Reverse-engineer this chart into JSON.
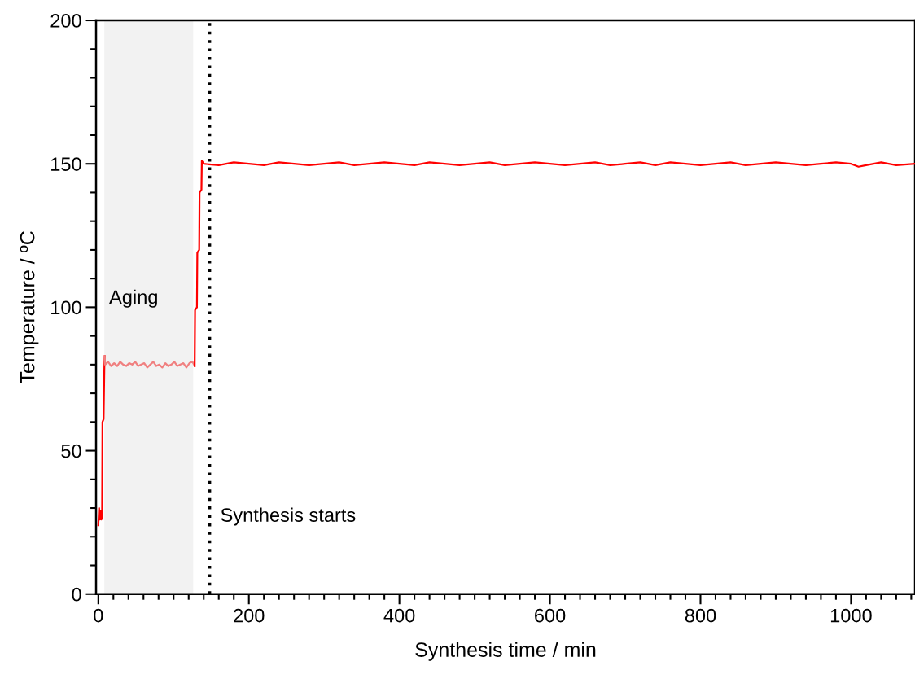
{
  "chart_data": {
    "type": "line",
    "xlabel": "Synthesis time / min",
    "ylabel": "Temperature / ºC",
    "xlim": [
      -3,
      1085
    ],
    "xticks": [
      0,
      200,
      400,
      600,
      800,
      1000
    ],
    "ylim": [
      0,
      200
    ],
    "yticks": [
      0,
      50,
      100,
      150,
      200
    ],
    "grid": false,
    "marker": "none",
    "line_style": "solid",
    "series": [
      {
        "color": "#ff0000",
        "x": [
          0,
          1,
          2,
          3,
          4,
          5,
          5.5,
          7,
          8,
          8.5
        ],
        "values": [
          24,
          30,
          26,
          29,
          26,
          27,
          60,
          61,
          79,
          83
        ]
      },
      {
        "color": "#f08080",
        "x": [
          8.5,
          9,
          13,
          17,
          21,
          25,
          29,
          33,
          37,
          41,
          45,
          49,
          53,
          57,
          61,
          65,
          69,
          73,
          77,
          81,
          85,
          89,
          93,
          97,
          101,
          105,
          109,
          113,
          117,
          121,
          125,
          128
        ],
        "values": [
          83,
          80,
          81,
          79.5,
          80.5,
          79.5,
          81,
          80,
          79.5,
          80.5,
          80,
          81,
          79.5,
          80,
          80.5,
          79,
          80,
          81,
          79.5,
          80,
          79,
          80.5,
          79.5,
          80,
          81,
          79.5,
          80,
          80.5,
          79,
          80.5,
          81,
          79.5
        ]
      },
      {
        "color": "#ff0000",
        "x": [
          128,
          128.5,
          131,
          131.5,
          134,
          134.5,
          137,
          137.5,
          140,
          160,
          180,
          200,
          220,
          240,
          260,
          280,
          300,
          320,
          340,
          360,
          380,
          400,
          420,
          440,
          460,
          480,
          500,
          520,
          540,
          560,
          580,
          600,
          620,
          640,
          660,
          680,
          700,
          720,
          740,
          760,
          780,
          800,
          820,
          840,
          860,
          880,
          900,
          920,
          940,
          960,
          980,
          1000,
          1010,
          1020,
          1040,
          1060,
          1085
        ],
        "values": [
          79.5,
          99,
          100,
          119,
          120,
          140,
          141,
          151,
          150,
          149.5,
          150.5,
          150,
          149.5,
          150.5,
          150,
          149.5,
          150,
          150.5,
          149.5,
          150,
          150.5,
          150,
          149.5,
          150.5,
          150,
          149.5,
          150,
          150.5,
          149.5,
          150,
          150.5,
          150,
          149.5,
          150,
          150.5,
          149.5,
          150,
          150.5,
          149.5,
          150.5,
          150,
          149.5,
          150,
          150.5,
          149.5,
          150,
          150.5,
          150,
          149.5,
          150,
          150.5,
          150,
          149,
          149.5,
          150.5,
          149.5,
          150
        ]
      }
    ],
    "bands": [
      {
        "axis": "x",
        "from": 8,
        "to": 126,
        "label": "Aging",
        "color": "#f2f2f2"
      }
    ],
    "ref_lines": [
      {
        "axis": "x",
        "value": 148,
        "label": "Synthesis starts",
        "color": "#000000",
        "line_style": "dotted"
      }
    ]
  }
}
